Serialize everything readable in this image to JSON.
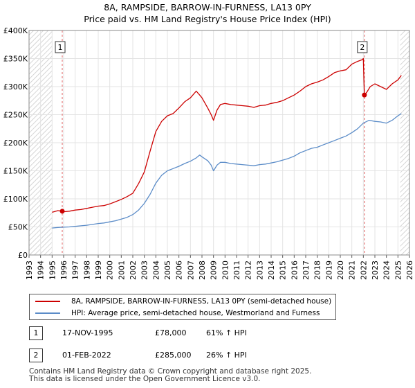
{
  "chart_data": {
    "type": "line",
    "title": "8A, RAMPSIDE, BARROW-IN-FURNESS, LA13 0PY",
    "subtitle": "Price paid vs. HM Land Registry's House Price Index (HPI)",
    "xlabel": "",
    "ylabel": "",
    "xlim": [
      1993,
      2026
    ],
    "ylim": [
      0,
      400000
    ],
    "y_ticks": [
      {
        "value": 0,
        "label": "£0"
      },
      {
        "value": 50000,
        "label": "£50K"
      },
      {
        "value": 100000,
        "label": "£100K"
      },
      {
        "value": 150000,
        "label": "£150K"
      },
      {
        "value": 200000,
        "label": "£200K"
      },
      {
        "value": 250000,
        "label": "£250K"
      },
      {
        "value": 300000,
        "label": "£300K"
      },
      {
        "value": 350000,
        "label": "£350K"
      },
      {
        "value": 400000,
        "label": "£400K"
      }
    ],
    "x_ticks": [
      "1993",
      "1994",
      "1995",
      "1996",
      "1997",
      "1998",
      "1999",
      "2000",
      "2001",
      "2002",
      "2003",
      "2004",
      "2005",
      "2006",
      "2007",
      "2008",
      "2009",
      "2010",
      "2011",
      "2012",
      "2013",
      "2014",
      "2015",
      "2016",
      "2017",
      "2018",
      "2019",
      "2020",
      "2021",
      "2022",
      "2023",
      "2024",
      "2025",
      "2026"
    ],
    "hatched_ranges": [
      [
        1993,
        1995.0
      ],
      [
        2025.2,
        2026
      ]
    ],
    "series": [
      {
        "name": "8A, RAMPSIDE, BARROW-IN-FURNESS, LA13 0PY (semi-detached house)",
        "color": "#cc0000",
        "x": [
          1995.0,
          1995.5,
          1995.88,
          1996.0,
          1996.5,
          1997.0,
          1997.5,
          1998.0,
          1998.5,
          1999.0,
          1999.5,
          2000.0,
          2000.5,
          2001.0,
          2001.5,
          2002.0,
          2002.5,
          2003.0,
          2003.5,
          2004.0,
          2004.5,
          2005.0,
          2005.5,
          2006.0,
          2006.5,
          2007.0,
          2007.5,
          2007.8,
          2008.0,
          2008.5,
          2008.8,
          2009.0,
          2009.3,
          2009.6,
          2010.0,
          2010.5,
          2011.0,
          2011.5,
          2012.0,
          2012.5,
          2013.0,
          2013.5,
          2014.0,
          2014.5,
          2015.0,
          2015.5,
          2016.0,
          2016.5,
          2017.0,
          2017.5,
          2018.0,
          2018.5,
          2019.0,
          2019.5,
          2020.0,
          2020.5,
          2021.0,
          2021.5,
          2021.9,
          2022.0,
          2022.09,
          2022.3,
          2022.6,
          2023.0,
          2023.5,
          2024.0,
          2024.5,
          2025.0,
          2025.3
        ],
        "y": [
          76000,
          79000,
          78000,
          77000,
          78000,
          80000,
          81000,
          83000,
          85000,
          87000,
          88000,
          91000,
          95000,
          99000,
          104000,
          110000,
          127000,
          148000,
          185000,
          220000,
          238000,
          248000,
          252000,
          262000,
          273000,
          280000,
          292000,
          285000,
          280000,
          262000,
          250000,
          240000,
          258000,
          268000,
          270000,
          268000,
          267000,
          266000,
          265000,
          263000,
          266000,
          267000,
          270000,
          272000,
          275000,
          280000,
          285000,
          292000,
          300000,
          305000,
          308000,
          312000,
          318000,
          325000,
          328000,
          330000,
          340000,
          345000,
          348000,
          350000,
          285000,
          290000,
          300000,
          305000,
          300000,
          295000,
          305000,
          312000,
          320000
        ]
      },
      {
        "name": "HPI: Average price, semi-detached house, Westmorland and Furness",
        "color": "#5b8cc8",
        "x": [
          1995.0,
          1995.5,
          1996.0,
          1996.5,
          1997.0,
          1997.5,
          1998.0,
          1998.5,
          1999.0,
          1999.5,
          2000.0,
          2000.5,
          2001.0,
          2001.5,
          2002.0,
          2002.5,
          2003.0,
          2003.5,
          2004.0,
          2004.5,
          2005.0,
          2005.5,
          2006.0,
          2006.5,
          2007.0,
          2007.5,
          2007.8,
          2008.0,
          2008.5,
          2008.8,
          2009.0,
          2009.3,
          2009.6,
          2010.0,
          2010.5,
          2011.0,
          2011.5,
          2012.0,
          2012.5,
          2013.0,
          2013.5,
          2014.0,
          2014.5,
          2015.0,
          2015.5,
          2016.0,
          2016.5,
          2017.0,
          2017.5,
          2018.0,
          2018.5,
          2019.0,
          2019.5,
          2020.0,
          2020.5,
          2021.0,
          2021.5,
          2022.0,
          2022.5,
          2023.0,
          2023.5,
          2024.0,
          2024.5,
          2025.0,
          2025.3
        ],
        "y": [
          48000,
          49000,
          49500,
          50000,
          51000,
          52000,
          53000,
          54500,
          56000,
          57000,
          59000,
          61000,
          64000,
          67000,
          72000,
          80000,
          92000,
          108000,
          128000,
          142000,
          150000,
          154000,
          158000,
          163000,
          167000,
          173000,
          178000,
          175000,
          168000,
          160000,
          150000,
          160000,
          165000,
          165000,
          163000,
          162000,
          161000,
          160000,
          159000,
          161000,
          162000,
          164000,
          166000,
          169000,
          172000,
          176000,
          182000,
          186000,
          190000,
          192000,
          196000,
          200000,
          204000,
          208000,
          212000,
          218000,
          225000,
          235000,
          240000,
          238000,
          237000,
          235000,
          240000,
          248000,
          252000
        ]
      }
    ],
    "annotations": [
      {
        "label": "1",
        "x": 1995.88,
        "y": 78000
      },
      {
        "label": "2",
        "x": 2022.09,
        "y": 285000
      }
    ]
  },
  "legend": {
    "items": [
      {
        "label": "8A, RAMPSIDE, BARROW-IN-FURNESS, LA13 0PY (semi-detached house)",
        "color": "#cc0000"
      },
      {
        "label": "HPI: Average price, semi-detached house, Westmorland and Furness",
        "color": "#5b8cc8"
      }
    ]
  },
  "transactions": [
    {
      "num": "1",
      "date": "17-NOV-1995",
      "price": "£78,000",
      "hpi": "61% ↑ HPI"
    },
    {
      "num": "2",
      "date": "01-FEB-2022",
      "price": "£285,000",
      "hpi": "26% ↑ HPI"
    }
  ],
  "footer": {
    "line1": "Contains HM Land Registry data © Crown copyright and database right 2025.",
    "line2": "This data is licensed under the Open Government Licence v3.0."
  }
}
